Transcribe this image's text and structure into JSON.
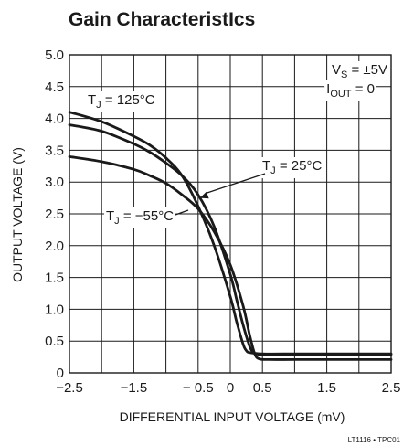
{
  "chart_data": {
    "type": "line",
    "title": "Gain CharacteristIcs",
    "xlabel": "DIFFERENTIAL INPUT VOLTAGE (mV)",
    "ylabel": "OUTPUT VOLTAGE (V)",
    "xlim": [
      -2.5,
      2.5
    ],
    "ylim": [
      0,
      5.0
    ],
    "grid": true,
    "x_ticks": [
      -2.5,
      -1.5,
      -0.5,
      0.5,
      1.5,
      2.5
    ],
    "x_tick_labels": [
      "−2.5",
      "−1.5",
      "− 0.5",
      "0.5",
      "1.5",
      "2.5"
    ],
    "x_tick_center_labels": [
      "0"
    ],
    "y_ticks": [
      0,
      0.5,
      1.0,
      1.5,
      2.0,
      2.5,
      3.0,
      3.5,
      4.0,
      4.5,
      5.0
    ],
    "y_tick_labels": [
      "0",
      "0.5",
      "1.0",
      "1.5",
      "2.0",
      "2.5",
      "3.0",
      "3.5",
      "4.0",
      "4.5",
      "5.0"
    ],
    "conditions": {
      "vs": {
        "main": "V",
        "sub": "S",
        "rest": " = ±5V"
      },
      "iout": {
        "main": "I",
        "sub": "OUT",
        "rest": " = 0"
      }
    },
    "figure_code": "LT1116 • TPC01",
    "series": [
      {
        "label": {
          "main": "T",
          "sub": "J",
          "rest": " = 125°C"
        },
        "x": [
          -2.5,
          -2.0,
          -1.5,
          -1.25,
          -1.0,
          -0.75,
          -0.5,
          -0.25,
          0.0,
          0.1,
          0.2,
          0.25,
          0.3,
          0.5,
          1.0,
          1.5,
          2.0,
          2.5
        ],
        "y": [
          4.1,
          3.95,
          3.72,
          3.58,
          3.38,
          3.1,
          2.62,
          2.0,
          1.2,
          0.8,
          0.45,
          0.35,
          0.32,
          0.3,
          0.3,
          0.3,
          0.3,
          0.3
        ]
      },
      {
        "label": {
          "main": "T",
          "sub": "J",
          "rest": " = 25°C"
        },
        "x": [
          -2.5,
          -2.0,
          -1.5,
          -1.25,
          -1.0,
          -0.75,
          -0.5,
          -0.25,
          0.0,
          0.1,
          0.2,
          0.3,
          0.35,
          0.4,
          0.5,
          1.0,
          1.5,
          2.0,
          2.5
        ],
        "y": [
          3.9,
          3.8,
          3.6,
          3.47,
          3.3,
          3.1,
          2.8,
          2.3,
          1.55,
          1.15,
          0.75,
          0.42,
          0.33,
          0.3,
          0.29,
          0.29,
          0.29,
          0.29,
          0.29
        ]
      },
      {
        "label": {
          "main": "T",
          "sub": "J",
          "rest": " = −55°C"
        },
        "x": [
          -2.5,
          -2.0,
          -1.5,
          -1.25,
          -1.0,
          -0.75,
          -0.5,
          -0.25,
          0.0,
          0.2,
          0.3,
          0.38,
          0.45,
          0.6,
          1.0,
          1.5,
          2.0,
          2.5
        ],
        "y": [
          3.4,
          3.32,
          3.2,
          3.1,
          2.98,
          2.8,
          2.58,
          2.22,
          1.7,
          1.05,
          0.6,
          0.3,
          0.22,
          0.21,
          0.21,
          0.21,
          0.21,
          0.21
        ]
      }
    ]
  }
}
